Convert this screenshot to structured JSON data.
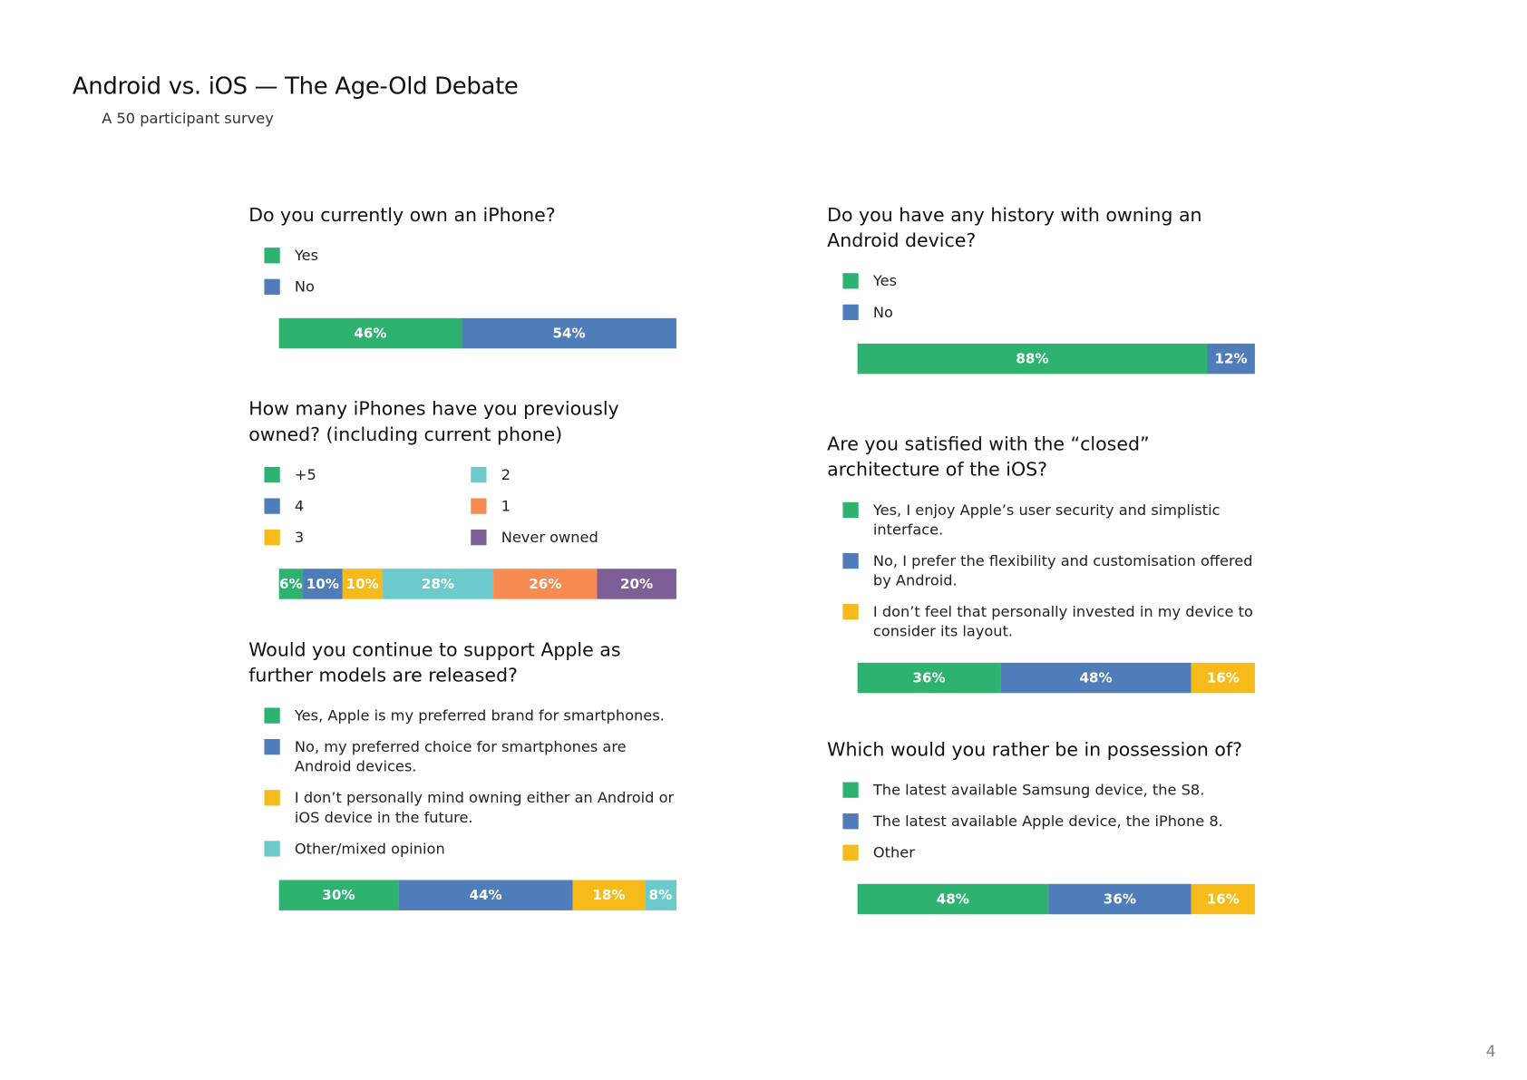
{
  "title": "Android vs. iOS — The Age-Old Debate",
  "subtitle": "A 50 participant survey",
  "page_number": "4",
  "chart_data": [
    {
      "type": "stacked_bar",
      "title": "Do you currently own an iPhone?",
      "series": [
        {
          "name": "Yes",
          "color": "#2db36f",
          "values": [
            46
          ],
          "value_labels": [
            "46%"
          ]
        },
        {
          "name": "No",
          "color": "#4f7dba",
          "values": [
            54
          ],
          "value_labels": [
            "54%"
          ]
        }
      ]
    },
    {
      "type": "stacked_bar",
      "title": "Do you have any history with owning an Android device?",
      "series": [
        {
          "name": "Yes",
          "color": "#2db36f",
          "values": [
            88
          ],
          "value_labels": [
            "88%"
          ]
        },
        {
          "name": "No",
          "color": "#4f7dba",
          "values": [
            12
          ],
          "value_labels": [
            "12%"
          ]
        }
      ]
    },
    {
      "type": "stacked_bar",
      "title": "How many iPhones have you previously owned? (including current phone)",
      "series": [
        {
          "name": "+5",
          "color": "#2db36f",
          "values": [
            6
          ],
          "value_labels": [
            "6%"
          ]
        },
        {
          "name": "4",
          "color": "#4f7dba",
          "values": [
            10
          ],
          "value_labels": [
            "10%"
          ]
        },
        {
          "name": "3",
          "color": "#f6bb1a",
          "values": [
            10
          ],
          "value_labels": [
            "10%"
          ]
        },
        {
          "name": "2",
          "color": "#6ccacc",
          "values": [
            28
          ],
          "value_labels": [
            "28%"
          ]
        },
        {
          "name": "1",
          "color": "#f58b50",
          "values": [
            26
          ],
          "value_labels": [
            "26%"
          ]
        },
        {
          "name": "Never owned",
          "color": "#7e5e96",
          "values": [
            20
          ],
          "value_labels": [
            "20%"
          ]
        }
      ]
    },
    {
      "type": "stacked_bar",
      "title": "Are you satisfied with the “closed” architecture of the iOS?",
      "series": [
        {
          "name": "Yes, I enjoy Apple’s user security and simplistic interface.",
          "color": "#2db36f",
          "values": [
            36
          ],
          "value_labels": [
            "36%"
          ]
        },
        {
          "name": "No, I prefer the flexibility and customisation offered by Android.",
          "color": "#4f7dba",
          "values": [
            48
          ],
          "value_labels": [
            "48%"
          ]
        },
        {
          "name": "I don’t feel that personally invested in my device to consider its layout.",
          "color": "#f6bb1a",
          "values": [
            16
          ],
          "value_labels": [
            "16%"
          ]
        }
      ]
    },
    {
      "type": "stacked_bar",
      "title": "Would you continue to support Apple as further models are released?",
      "series": [
        {
          "name": "Yes, Apple is my preferred brand for smartphones.",
          "color": "#2db36f",
          "values": [
            30
          ],
          "value_labels": [
            "30%"
          ]
        },
        {
          "name": "No, my preferred choice for smartphones are Android devices.",
          "color": "#4f7dba",
          "values": [
            44
          ],
          "value_labels": [
            "44%"
          ]
        },
        {
          "name": "I don’t personally mind owning either an Android or iOS device in the future.",
          "color": "#f6bb1a",
          "values": [
            18
          ],
          "value_labels": [
            "18%"
          ]
        },
        {
          "name": "Other/mixed opinion",
          "color": "#6ccacc",
          "values": [
            8
          ],
          "value_labels": [
            "8%"
          ]
        }
      ]
    },
    {
      "type": "stacked_bar",
      "title": "Which would you rather be in possession of?",
      "series": [
        {
          "name": "The latest available Samsung device, the S8.",
          "color": "#2db36f",
          "values": [
            48
          ],
          "value_labels": [
            "48%"
          ]
        },
        {
          "name": "The latest available Apple device, the iPhone 8.",
          "color": "#4f7dba",
          "values": [
            36
          ],
          "value_labels": [
            "36%"
          ]
        },
        {
          "name": "Other",
          "color": "#f6bb1a",
          "values": [
            16
          ],
          "value_labels": [
            "16%"
          ]
        }
      ]
    }
  ]
}
